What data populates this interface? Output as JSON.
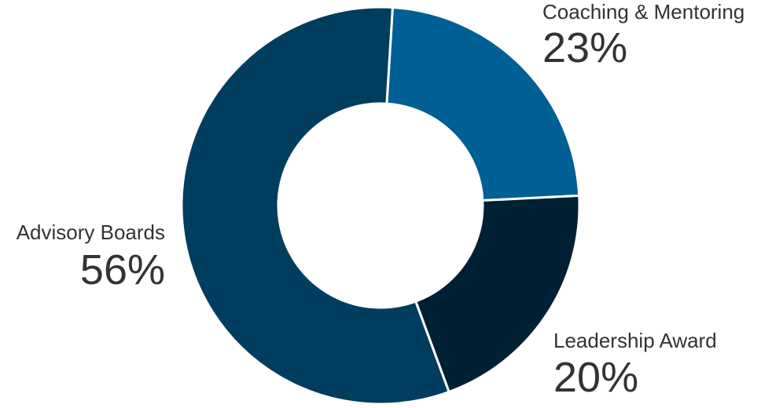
{
  "chart_data": {
    "type": "pie",
    "categories": [
      "Coaching & Mentoring",
      "Leadership Award",
      "Advisory Boards"
    ],
    "values": [
      23,
      20,
      56
    ],
    "value_labels": [
      "23%",
      "20%",
      "56%"
    ],
    "colors": [
      "#005f95",
      "#002033",
      "#003d5e"
    ],
    "title": "",
    "legend": "none"
  }
}
